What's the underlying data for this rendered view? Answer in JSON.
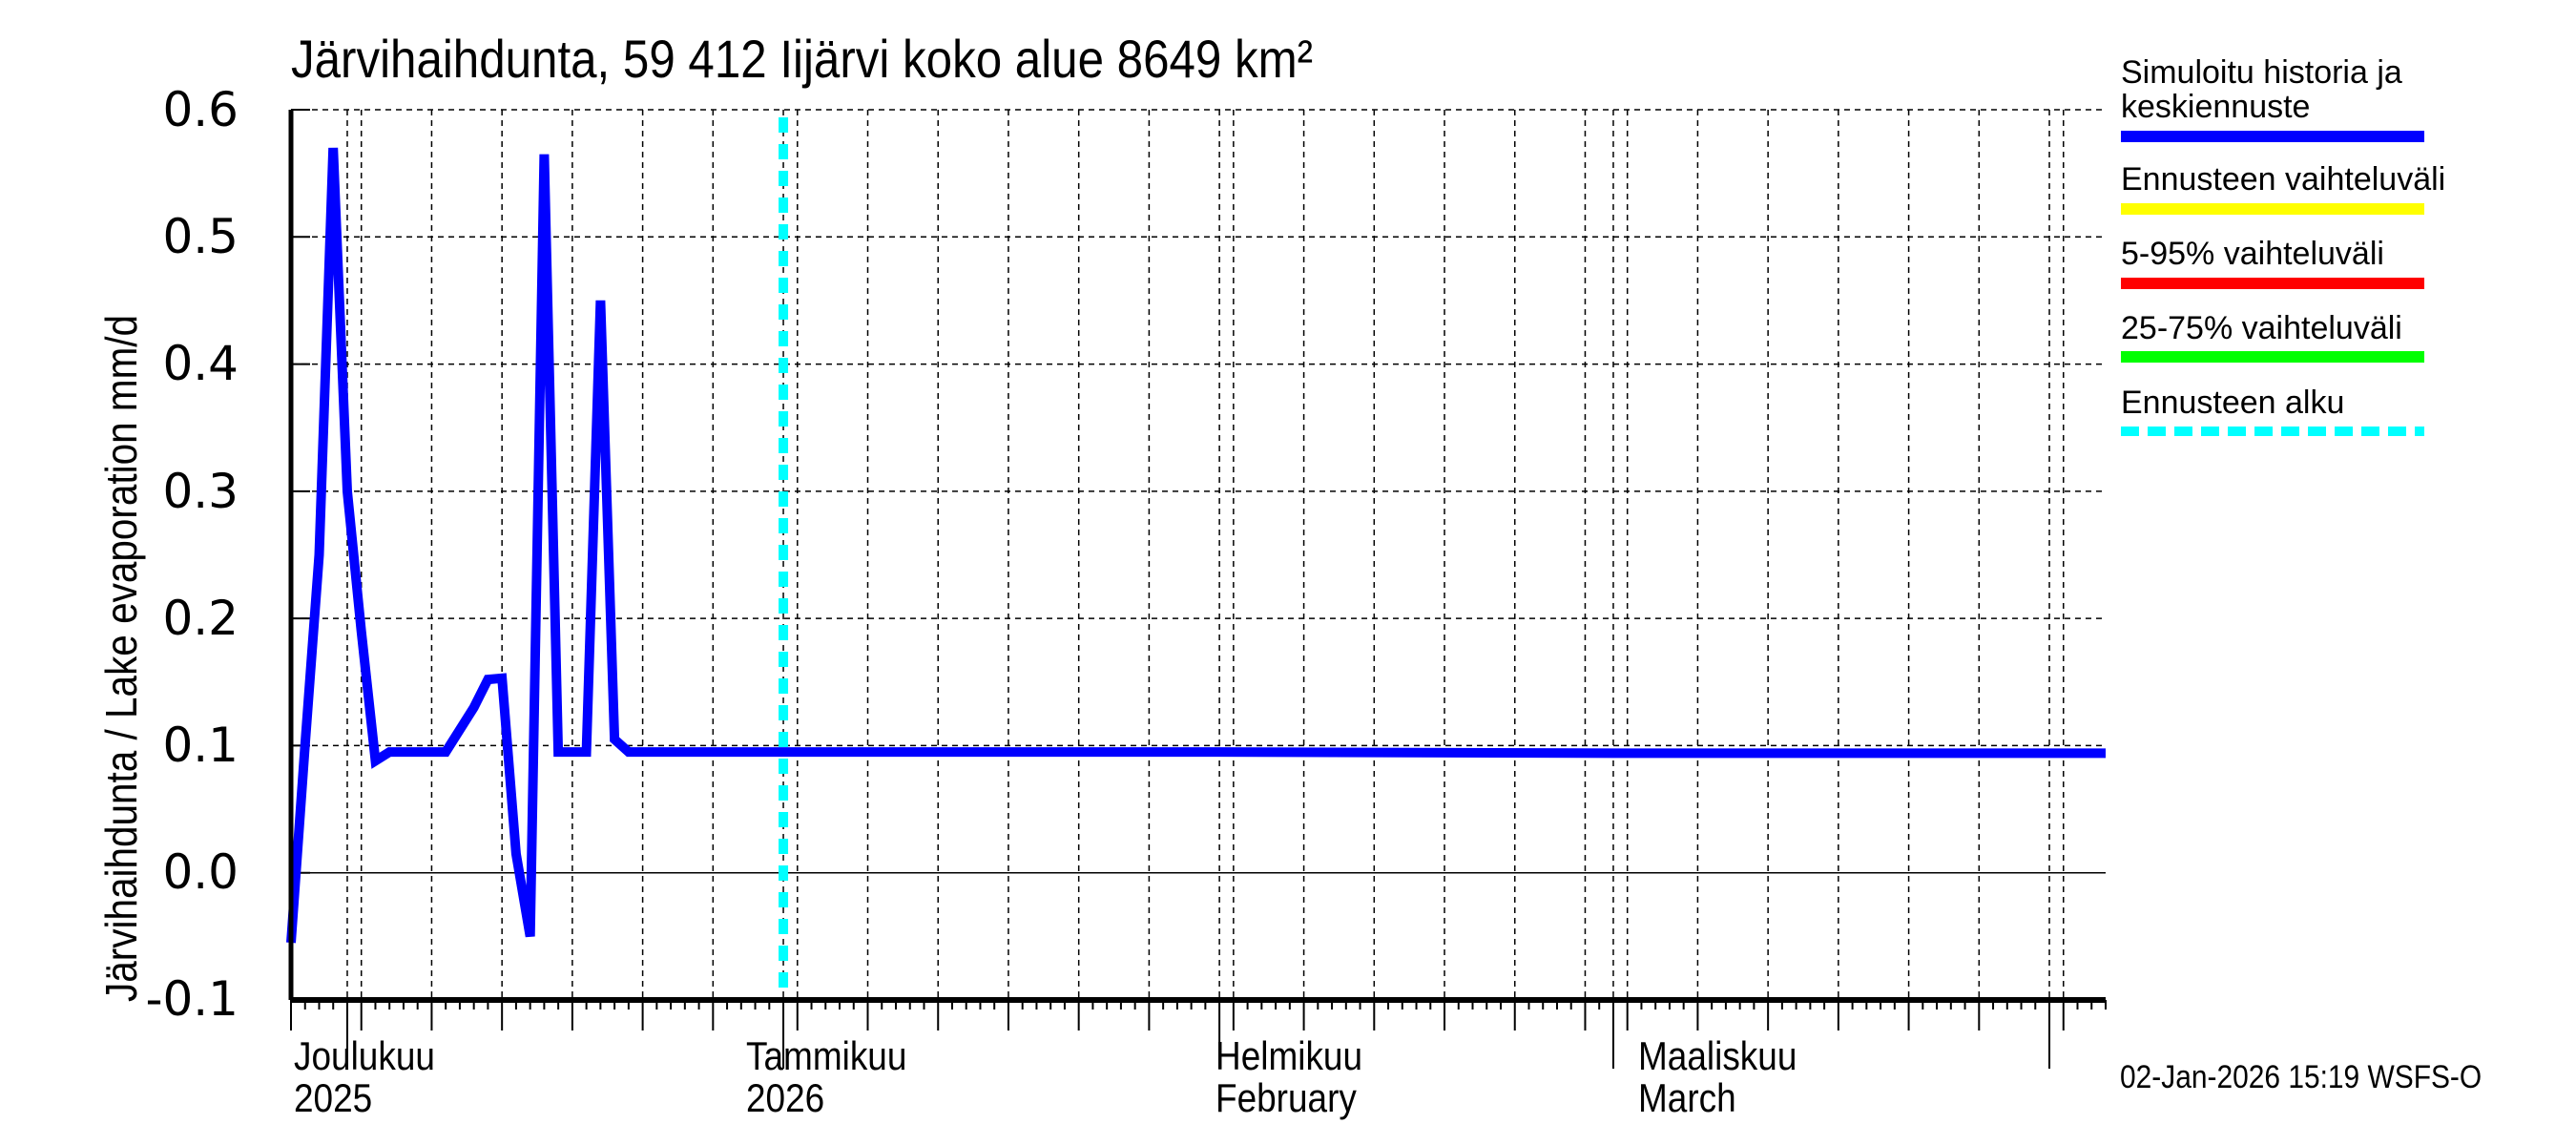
{
  "title": "Järvihaihdunta, 59 412 Iijärvi koko alue 8649 km²",
  "ylabel": "Järvihaihdunta / Lake evaporation   mm/d",
  "yticks": [
    "0.6",
    "0.5",
    "0.4",
    "0.3",
    "0.2",
    "0.1",
    "0.0",
    "-0.1"
  ],
  "xlabels": [
    {
      "line1": "Joulukuu",
      "line2": "2025"
    },
    {
      "line1": "Tammikuu",
      "line2": "2026"
    },
    {
      "line1": "Helmikuu",
      "line2": "February"
    },
    {
      "line1": "Maaliskuu",
      "line2": "March"
    }
  ],
  "legend": [
    {
      "label": "Simuloitu historia ja keskiennuste",
      "color": "#0000ff",
      "style": "solid"
    },
    {
      "label": "Ennusteen vaihteluväli",
      "color": "#ffff00",
      "style": "solid"
    },
    {
      "label": "5-95% vaihteluväli",
      "color": "#ff0000",
      "style": "solid"
    },
    {
      "label": "25-75% vaihteluväli",
      "color": "#00ff00",
      "style": "solid"
    },
    {
      "label": "Ennusteen alku",
      "color": "#00ffff",
      "style": "dashed"
    }
  ],
  "footer": "02-Jan-2026 15:19 WSFS-O",
  "chart_data": {
    "type": "line",
    "title": "Järvihaihdunta, 59 412 Iijärvi koko alue 8649 km²",
    "xlabel": "",
    "ylabel": "Järvihaihdunta / Lake evaporation mm/d",
    "ylim": [
      -0.1,
      0.6
    ],
    "xlim": [
      "2025-11-27",
      "2026-04-05"
    ],
    "grid": true,
    "legend_position": "right",
    "forecast_start": "2026-01-01",
    "series": [
      {
        "name": "Simuloitu historia ja keskiennuste",
        "color": "#0000ff",
        "x": [
          "2025-11-27",
          "2025-11-28",
          "2025-11-29",
          "2025-11-30",
          "2025-12-01",
          "2025-12-02",
          "2025-12-03",
          "2025-12-04",
          "2025-12-05",
          "2025-12-08",
          "2025-12-10",
          "2025-12-11",
          "2025-12-12",
          "2025-12-13",
          "2025-12-14",
          "2025-12-15",
          "2025-12-16",
          "2025-12-17",
          "2025-12-18",
          "2025-12-19",
          "2025-12-20",
          "2025-12-21",
          "2025-12-22",
          "2025-12-23",
          "2026-01-01",
          "2026-02-01",
          "2026-03-01",
          "2026-04-05"
        ],
        "values": [
          -0.055,
          0.1,
          0.25,
          0.57,
          0.3,
          0.19,
          0.088,
          0.095,
          0.095,
          0.095,
          0.13,
          0.152,
          0.153,
          0.015,
          -0.05,
          0.565,
          0.095,
          0.095,
          0.095,
          0.45,
          0.105,
          0.095,
          0.095,
          0.095,
          0.095,
          0.095,
          0.094,
          0.094
        ]
      }
    ]
  }
}
